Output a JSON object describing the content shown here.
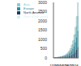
{
  "chart_data": {
    "type": "bar",
    "stacked": true,
    "legend": "top-left",
    "categories": [
      "1990",
      null,
      null,
      null,
      "1994",
      null,
      null,
      null,
      "1998",
      null,
      null,
      null,
      "2002",
      null,
      null,
      null,
      "2006",
      null,
      null,
      null
    ],
    "series": [
      {
        "name": "North America",
        "color": "#1f3a5f",
        "values": [
          5,
          6,
          8,
          10,
          13,
          16,
          20,
          25,
          32,
          40,
          50,
          65,
          85,
          110,
          145,
          190,
          250,
          330,
          430,
          560
        ]
      },
      {
        "name": "Europe",
        "color": "#2f8f9d",
        "values": [
          8,
          10,
          12,
          15,
          19,
          24,
          30,
          38,
          48,
          60,
          75,
          95,
          125,
          165,
          220,
          290,
          380,
          500,
          660,
          870
        ]
      },
      {
        "name": "Asia",
        "color": "#7fd3d8",
        "values": [
          3,
          4,
          5,
          7,
          9,
          12,
          16,
          21,
          28,
          37,
          50,
          68,
          92,
          125,
          170,
          235,
          320,
          440,
          600,
          820
        ]
      },
      {
        "name": "Rest of the world",
        "color": "#d6f2f2",
        "values": [
          4,
          5,
          6,
          8,
          10,
          13,
          17,
          22,
          29,
          38,
          50,
          66,
          88,
          118,
          160,
          215,
          290,
          395,
          540,
          740
        ]
      }
    ],
    "ylim": [
      0,
      3000
    ],
    "yticks": [
      0,
      500,
      1000,
      1500,
      2000,
      2500,
      3000
    ]
  }
}
